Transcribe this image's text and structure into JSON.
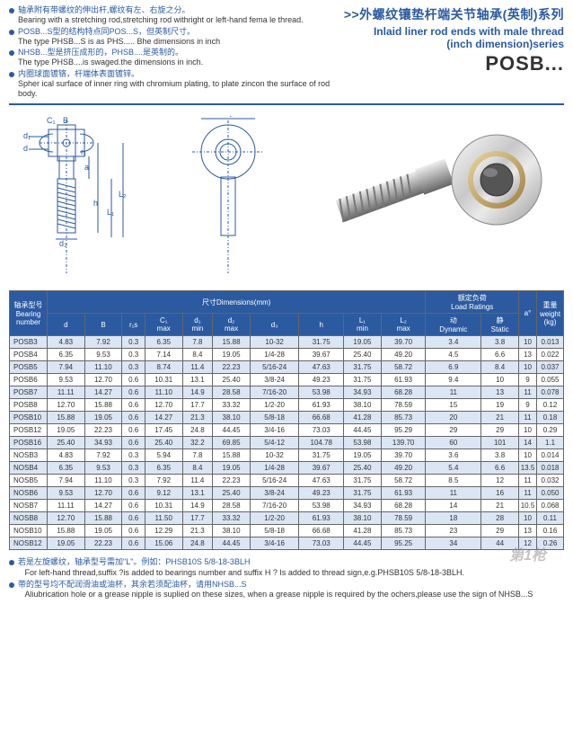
{
  "header": {
    "notes": [
      {
        "cn": "轴承附有带螺纹的伸出杆,螺纹有左、右旋之分。",
        "en": "Bearing with a stretching rod,stretching rod withright or left-hand fema le thread."
      },
      {
        "cn": "POSB...S型的结构特点同POS...S，但英制尺寸。",
        "en": "The type PHSB...S is as PHS..... Bhe dimensions in inch"
      },
      {
        "cn": "NHSB...型是挤压成形的，PHSB....是英制的。",
        "en": "The type PHSB....is swaged.the dimensions in inch."
      },
      {
        "cn": "内圈球面镀铬，杆端体表面镀锌。",
        "en": "Spher ical surface of inner ring with chromium plating, to plate zincon the surface of rod body."
      }
    ],
    "title_cn": ">>外螺纹镶垫杆端关节轴承(英制)系列",
    "title_en": "Inlaid liner rod ends with male thread",
    "series": "(inch dimension)series",
    "model": "POSB..."
  },
  "diagram_labels": {
    "B": "B",
    "C1": "C₁",
    "d": "d",
    "d1": "d₁",
    "r1": "r₁",
    "a": "a",
    "h": "h",
    "L1": "L₁",
    "L2": "L₂",
    "d3": "d₃",
    "D2": "D₂"
  },
  "table": {
    "head": {
      "bearing": "轴承型号\nBearing\nnumber",
      "dims": "尺寸Dimensions(mm)",
      "load": "额定负荷\nLoad Ratings",
      "alpha": "a°",
      "weight": "重量\nweight\n(kg)",
      "cols": [
        "d",
        "B",
        "r₁s",
        "C₁\nmax",
        "d₁\nmin",
        "d₂\nmax",
        "d₃",
        "h",
        "L₁\nmin",
        "L₂\nmax",
        "动\nDynamic",
        "静\nStatic"
      ]
    },
    "rows": [
      [
        "POSB3",
        "4.83",
        "7.92",
        "0.3",
        "6.35",
        "7.8",
        "15.88",
        "10-32",
        "31.75",
        "19.05",
        "39.70",
        "3.4",
        "3.8",
        "10",
        "0.013"
      ],
      [
        "POSB4",
        "6.35",
        "9.53",
        "0.3",
        "7.14",
        "8.4",
        "19.05",
        "1/4-28",
        "39.67",
        "25.40",
        "49.20",
        "4.5",
        "6.6",
        "13",
        "0.022"
      ],
      [
        "POSB5",
        "7.94",
        "11.10",
        "0.3",
        "8.74",
        "11.4",
        "22.23",
        "5/16-24",
        "47.63",
        "31.75",
        "58.72",
        "6.9",
        "8.4",
        "10",
        "0.037"
      ],
      [
        "POSB6",
        "9.53",
        "12.70",
        "0.6",
        "10.31",
        "13.1",
        "25.40",
        "3/8-24",
        "49.23",
        "31.75",
        "61.93",
        "9.4",
        "10",
        "9",
        "0.055"
      ],
      [
        "POSB7",
        "11.11",
        "14.27",
        "0.6",
        "11.10",
        "14.9",
        "28.58",
        "7/16-20",
        "53.98",
        "34.93",
        "68.28",
        "11",
        "13",
        "11",
        "0.078"
      ],
      [
        "POSB8",
        "12.70",
        "15.88",
        "0.6",
        "12.70",
        "17.7",
        "33.32",
        "1/2-20",
        "61.93",
        "38.10",
        "78.59",
        "15",
        "19",
        "9",
        "0.12"
      ],
      [
        "POSB10",
        "15.88",
        "19.05",
        "0.6",
        "14.27",
        "21.3",
        "38.10",
        "5/8-18",
        "66.68",
        "41.28",
        "85.73",
        "20",
        "21",
        "11",
        "0.18"
      ],
      [
        "POSB12",
        "19.05",
        "22.23",
        "0.6",
        "17.45",
        "24.8",
        "44.45",
        "3/4-16",
        "73.03",
        "44.45",
        "95.29",
        "29",
        "29",
        "10",
        "0.29"
      ],
      [
        "POSB16",
        "25.40",
        "34.93",
        "0.6",
        "25.40",
        "32.2",
        "69.85",
        "5/4-12",
        "104.78",
        "53.98",
        "139.70",
        "60",
        "101",
        "14",
        "1.1"
      ],
      [
        "NOSB3",
        "4.83",
        "7.92",
        "0.3",
        "5.94",
        "7.8",
        "15.88",
        "10-32",
        "31.75",
        "19.05",
        "39.70",
        "3.6",
        "3.8",
        "10",
        "0.014"
      ],
      [
        "NOSB4",
        "6.35",
        "9.53",
        "0.3",
        "6.35",
        "8.4",
        "19.05",
        "1/4-28",
        "39.67",
        "25.40",
        "49.20",
        "5.4",
        "6.6",
        "13.5",
        "0.018"
      ],
      [
        "NOSB5",
        "7.94",
        "11.10",
        "0.3",
        "7.92",
        "11.4",
        "22.23",
        "5/16-24",
        "47.63",
        "31.75",
        "58.72",
        "8.5",
        "12",
        "11",
        "0.032"
      ],
      [
        "NOSB6",
        "9.53",
        "12.70",
        "0.6",
        "9.12",
        "13.1",
        "25.40",
        "3/8-24",
        "49.23",
        "31.75",
        "61.93",
        "11",
        "16",
        "11",
        "0.050"
      ],
      [
        "NOSB7",
        "11.11",
        "14.27",
        "0.6",
        "10.31",
        "14.9",
        "28.58",
        "7/16-20",
        "53.98",
        "34.93",
        "68.28",
        "14",
        "21",
        "10.5",
        "0.068"
      ],
      [
        "NOSB8",
        "12.70",
        "15.88",
        "0.6",
        "11.50",
        "17.7",
        "33.32",
        "1/2-20",
        "61.93",
        "38.10",
        "78.59",
        "18",
        "28",
        "10",
        "0.11"
      ],
      [
        "NOSB10",
        "15.88",
        "19.05",
        "0.6",
        "12.29",
        "21.3",
        "38.10",
        "5/8-18",
        "66.68",
        "41.28",
        "85.73",
        "23",
        "29",
        "13",
        "0.16"
      ],
      [
        "NOSB12",
        "19.05",
        "22.23",
        "0.6",
        "15.06",
        "24.8",
        "44.45",
        "3/4-16",
        "73.03",
        "44.45",
        "95.25",
        "34",
        "44",
        "12",
        "0.26"
      ]
    ]
  },
  "footnotes": [
    {
      "cn": "若是左旋螺纹，轴承型号需加\"L\"。例如：PHSB10S 5/8-18-3BLH",
      "en": "For left-hand thread,suffix ?is added to bearings number and suffix H ? Is added to thread sign,e.g.PHSB10S 5/8-18-3BLH."
    },
    {
      "cn": "带的型号均不配润滑油或油杯，其余若须配油杯，请用NHSB...S",
      "en": "Aliubrication hole or a grease nipple is suplied on these sizes, when a grease nipple is required by the ochers,please use the sign of NHSB...S"
    }
  ],
  "watermark": "第1枪"
}
